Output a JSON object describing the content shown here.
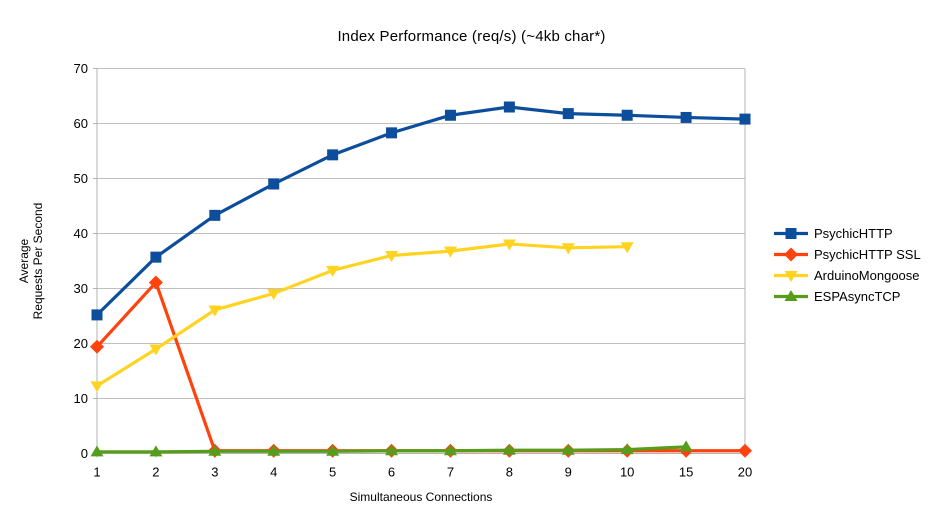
{
  "chart_data": {
    "type": "line",
    "title": "Index Performance (req/s) (~4kb char*)",
    "xlabel": "Simultaneous Connections",
    "ylabel": "Average Requests Per Second",
    "ylabel_lines": [
      "Average",
      "Requests Per Second"
    ],
    "categories": [
      "1",
      "2",
      "3",
      "4",
      "5",
      "6",
      "7",
      "8",
      "9",
      "10",
      "15",
      "20"
    ],
    "ylim": [
      0,
      70
    ],
    "ytick_step": 10,
    "grid": "horizontal",
    "legend_position": "right",
    "series": [
      {
        "name": "PsychicHTTP",
        "color": "#0c4e9c",
        "marker": "square",
        "values": [
          25.2,
          35.7,
          43.3,
          49.0,
          54.3,
          58.3,
          61.5,
          63.0,
          61.8,
          61.5,
          61.1,
          60.8
        ]
      },
      {
        "name": "PsychicHTTP SSL",
        "color": "#ff420e",
        "marker": "diamond",
        "values": [
          19.4,
          31.1,
          0.5,
          0.5,
          0.5,
          0.5,
          0.5,
          0.5,
          0.5,
          0.5,
          0.5,
          0.5
        ]
      },
      {
        "name": "ArduinoMongoose",
        "color": "#ffd320",
        "marker": "triangle-down",
        "values": [
          12.3,
          19.0,
          26.1,
          29.1,
          33.3,
          36.0,
          36.8,
          38.1,
          37.4,
          37.6,
          null,
          null
        ]
      },
      {
        "name": "ESPAsyncTCP",
        "color": "#579d1c",
        "marker": "triangle-up",
        "values": [
          0.3,
          0.3,
          0.4,
          0.4,
          0.4,
          0.5,
          0.5,
          0.6,
          0.6,
          0.7,
          1.2,
          null
        ]
      }
    ]
  }
}
